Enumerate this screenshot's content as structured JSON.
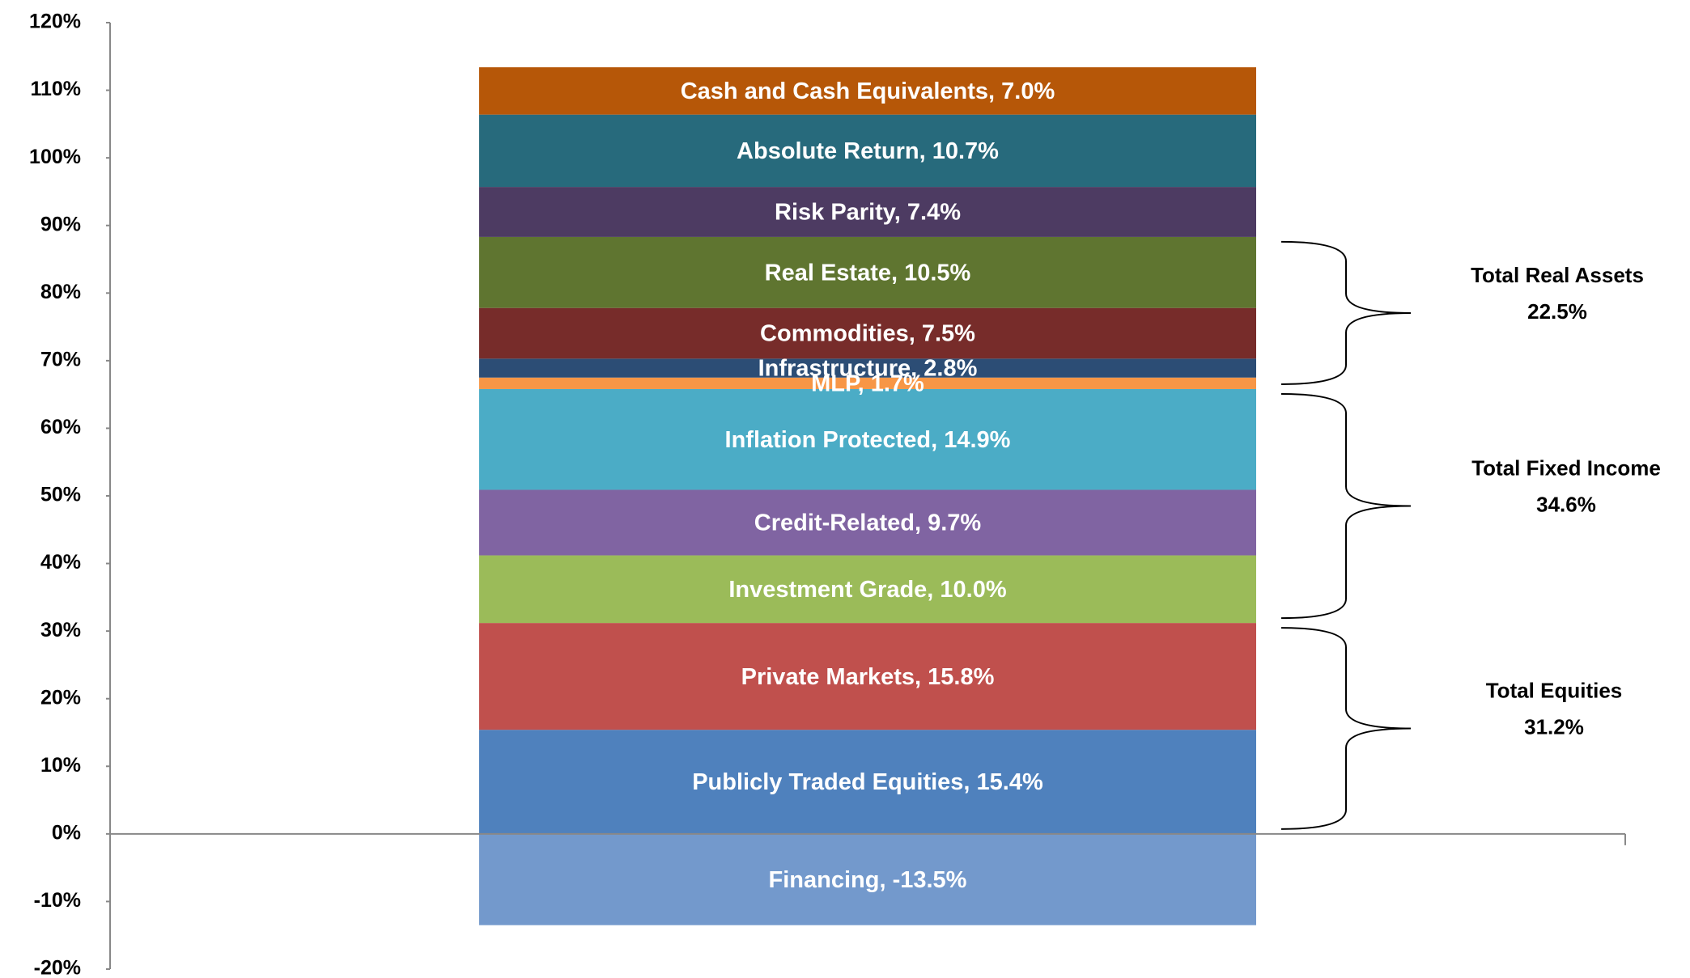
{
  "chart_data": {
    "type": "stacked_bar",
    "ylim": [
      -20,
      120
    ],
    "yticks": [
      {
        "value": -20,
        "label": "-20%"
      },
      {
        "value": -10,
        "label": "-10%"
      },
      {
        "value": 0,
        "label": "0%"
      },
      {
        "value": 10,
        "label": "10%"
      },
      {
        "value": 20,
        "label": "20%"
      },
      {
        "value": 30,
        "label": "30%"
      },
      {
        "value": 40,
        "label": "40%"
      },
      {
        "value": 50,
        "label": "50%"
      },
      {
        "value": 60,
        "label": "60%"
      },
      {
        "value": 70,
        "label": "70%"
      },
      {
        "value": 80,
        "label": "80%"
      },
      {
        "value": 90,
        "label": "90%"
      },
      {
        "value": 100,
        "label": "100%"
      },
      {
        "value": 110,
        "label": "110%"
      },
      {
        "value": 120,
        "label": "120%"
      }
    ],
    "grid": false,
    "series": [
      {
        "color": "#7399cc",
        "values": [
          -13.5
        ],
        "value_labels": [
          "Financing, -13.5%"
        ]
      },
      {
        "color": "#4f81bd",
        "values": [
          15.4
        ],
        "value_labels": [
          "Publicly Traded Equities, 15.4%"
        ]
      },
      {
        "color": "#c0504d",
        "values": [
          15.8
        ],
        "value_labels": [
          "Private Markets, 15.8%"
        ]
      },
      {
        "color": "#9bbb59",
        "values": [
          10.0
        ],
        "value_labels": [
          "Investment Grade, 10.0%"
        ]
      },
      {
        "color": "#8064a2",
        "values": [
          9.7
        ],
        "value_labels": [
          "Credit-Related, 9.7%"
        ]
      },
      {
        "color": "#4bacc6",
        "values": [
          14.9
        ],
        "value_labels": [
          "Inflation Protected, 14.9%"
        ]
      },
      {
        "color": "#f79646",
        "values": [
          1.7
        ],
        "value_labels": [
          "MLP, 1.7%"
        ]
      },
      {
        "color": "#2c4d75",
        "values": [
          2.8
        ],
        "value_labels": [
          "Infrastructure, 2.8%"
        ]
      },
      {
        "color": "#772c2a",
        "values": [
          7.5
        ],
        "value_labels": [
          "Commodities, 7.5%"
        ]
      },
      {
        "color": "#5f7530",
        "values": [
          10.5
        ],
        "value_labels": [
          "Real Estate, 10.5%"
        ]
      },
      {
        "color": "#4d3b62",
        "values": [
          7.4
        ],
        "value_labels": [
          "Risk Parity, 7.4%"
        ]
      },
      {
        "color": "#276a7c",
        "values": [
          10.7
        ],
        "value_labels": [
          "Absolute Return, 10.7%"
        ]
      },
      {
        "color": "#b65708",
        "values": [
          7.0
        ],
        "value_labels": [
          "Cash and Cash Equivalents, 7.0%"
        ]
      }
    ],
    "annotations": [
      {
        "text": "Total Equities",
        "value": 31.2,
        "value_label": "31.2%"
      },
      {
        "text": "Total Fixed Income",
        "value": 34.6,
        "value_label": "34.6%"
      },
      {
        "text": "Total Real Assets",
        "value": 22.5,
        "value_label": "22.5%"
      }
    ]
  }
}
